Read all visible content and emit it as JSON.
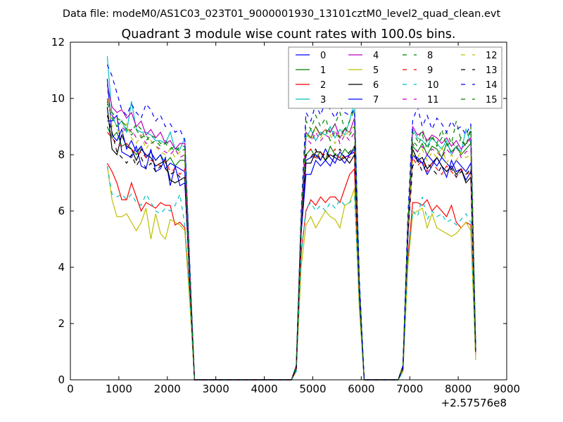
{
  "chart_data": {
    "type": "line",
    "suptitle": "Data file: modeM0/AS1C03_023T01_9000001930_13101cztM0_level2_quad_clean.evt",
    "title": "Quadrant 3 module wise count rates with 100.0s bins.",
    "xlabel": "",
    "ylabel": "",
    "x_offset_label": "+2.57576e8",
    "xlim": [
      0,
      9000
    ],
    "ylim": [
      0,
      12
    ],
    "xticks": [
      "0",
      "1000",
      "2000",
      "3000",
      "4000",
      "5000",
      "6000",
      "7000",
      "8000",
      "9000"
    ],
    "yticks": [
      "0",
      "2",
      "4",
      "6",
      "8",
      "10",
      "12"
    ],
    "legend_placement": "top-right",
    "x": [
      760,
      860,
      960,
      1060,
      1160,
      1260,
      1360,
      1460,
      1560,
      1660,
      1760,
      1860,
      1960,
      2060,
      2160,
      2260,
      2360,
      2460,
      2560,
      4560,
      4660,
      4760,
      4860,
      4960,
      5060,
      5160,
      5260,
      5360,
      5460,
      5560,
      5660,
      5760,
      5860,
      5960,
      6060,
      6760,
      6860,
      6960,
      7060,
      7160,
      7260,
      7360,
      7460,
      7560,
      7660,
      7760,
      7860,
      7960,
      8060,
      8160,
      8260,
      8360
    ],
    "series": [
      {
        "name": "0",
        "color": "#0000ff",
        "dash": "solid",
        "values": [
          9.2,
          9.2,
          9.4,
          8.1,
          8.0,
          7.9,
          8.3,
          7.6,
          7.5,
          8.2,
          7.4,
          7.5,
          7.9,
          6.9,
          7.6,
          6.9,
          7.0,
          3.8,
          0,
          0,
          0.4,
          5.2,
          7.3,
          7.3,
          7.8,
          7.6,
          7.8,
          7.6,
          8.0,
          7.9,
          7.7,
          8.0,
          8.1,
          3.0,
          0,
          0,
          0.4,
          5.0,
          8.0,
          7.8,
          7.7,
          7.3,
          7.6,
          7.9,
          7.6,
          7.2,
          7.8,
          7.4,
          7.5,
          7.1,
          7.4,
          1.0
        ]
      },
      {
        "name": "1",
        "color": "#008000",
        "dash": "solid",
        "values": [
          9.0,
          8.6,
          8.8,
          8.3,
          8.4,
          8.2,
          8.0,
          8.3,
          7.9,
          8.1,
          7.8,
          8.0,
          7.7,
          7.9,
          7.6,
          7.8,
          7.8,
          3.6,
          0,
          0,
          0.5,
          5.4,
          8.0,
          8.2,
          7.9,
          8.1,
          7.8,
          8.3,
          8.0,
          7.9,
          8.2,
          8.0,
          8.3,
          3.2,
          0,
          0,
          0.5,
          5.2,
          8.3,
          8.1,
          8.4,
          8.0,
          8.3,
          8.2,
          7.9,
          8.4,
          8.1,
          8.3,
          8.0,
          8.2,
          8.4,
          1.1
        ]
      },
      {
        "name": "2",
        "color": "#ff0000",
        "dash": "solid",
        "values": [
          7.7,
          7.4,
          7.0,
          6.4,
          6.4,
          7.0,
          6.5,
          6.0,
          6.3,
          6.2,
          6.1,
          6.3,
          6.2,
          6.2,
          5.5,
          5.6,
          5.4,
          3.0,
          0,
          0,
          0.3,
          4.5,
          6.0,
          6.4,
          6.2,
          6.5,
          6.3,
          6.5,
          6.5,
          6.3,
          6.8,
          7.3,
          7.5,
          2.8,
          0,
          0,
          0.3,
          4.3,
          6.3,
          6.3,
          6.2,
          6.4,
          6.0,
          6.2,
          6.0,
          5.8,
          6.2,
          5.6,
          5.4,
          5.6,
          5.5,
          0.9
        ]
      },
      {
        "name": "3",
        "color": "#00bfbf",
        "dash": "solid",
        "values": [
          11.5,
          9.4,
          9.0,
          9.2,
          8.8,
          9.9,
          8.9,
          8.8,
          8.8,
          8.7,
          8.5,
          8.5,
          8.4,
          8.8,
          8.2,
          8.2,
          8.6,
          4.2,
          0,
          0,
          0.5,
          5.8,
          8.6,
          8.9,
          8.5,
          8.8,
          8.7,
          9.0,
          8.6,
          8.9,
          8.7,
          9.2,
          9.9,
          3.5,
          0,
          0,
          0.5,
          5.5,
          8.9,
          8.6,
          8.5,
          8.3,
          8.6,
          8.4,
          8.2,
          8.5,
          8.0,
          8.3,
          8.1,
          8.9,
          8.4,
          1.1
        ]
      },
      {
        "name": "4",
        "color": "#bf00bf",
        "dash": "solid",
        "values": [
          10.5,
          9.7,
          9.5,
          9.6,
          9.3,
          9.5,
          9.0,
          9.2,
          8.7,
          8.9,
          8.6,
          8.8,
          8.4,
          8.5,
          8.2,
          8.4,
          8.4,
          4.0,
          0,
          0,
          0.5,
          5.7,
          8.8,
          8.6,
          9.0,
          8.7,
          8.9,
          8.8,
          9.1,
          8.6,
          8.9,
          8.8,
          9.3,
          3.4,
          0,
          0,
          0.5,
          5.4,
          9.0,
          8.7,
          8.8,
          8.5,
          8.7,
          8.6,
          8.4,
          8.6,
          8.3,
          8.5,
          8.2,
          8.4,
          8.6,
          1.1
        ]
      },
      {
        "name": "5",
        "color": "#bfbf00",
        "dash": "solid",
        "values": [
          7.6,
          6.4,
          5.8,
          5.8,
          5.9,
          5.6,
          5.3,
          5.6,
          6.1,
          5.0,
          5.9,
          5.2,
          5.0,
          5.7,
          5.6,
          5.5,
          5.3,
          2.8,
          0,
          0,
          0.3,
          4.0,
          5.5,
          5.8,
          5.4,
          5.7,
          6.0,
          5.8,
          5.7,
          5.4,
          6.2,
          6.3,
          6.8,
          2.5,
          0,
          0,
          0.3,
          4.0,
          5.9,
          6.0,
          6.1,
          5.4,
          5.9,
          5.4,
          5.3,
          5.2,
          5.1,
          5.2,
          5.4,
          5.6,
          5.3,
          0.7
        ]
      },
      {
        "name": "6",
        "color": "#000000",
        "dash": "solid",
        "values": [
          9.7,
          8.2,
          8.0,
          8.7,
          8.3,
          8.2,
          7.8,
          8.2,
          8.0,
          7.9,
          7.6,
          7.7,
          7.8,
          7.1,
          7.0,
          7.1,
          7.2,
          3.5,
          0,
          0,
          0.4,
          5.3,
          7.7,
          7.7,
          8.1,
          8.1,
          7.8,
          8.0,
          7.9,
          7.8,
          7.9,
          7.7,
          8.0,
          3.0,
          0,
          0,
          0.4,
          5.1,
          8.2,
          7.8,
          7.9,
          7.5,
          7.7,
          7.9,
          7.6,
          7.4,
          7.6,
          7.3,
          7.5,
          7.0,
          7.2,
          1.0
        ]
      },
      {
        "name": "7",
        "color": "#0000ff",
        "dash": "solid",
        "values": [
          10.7,
          8.7,
          8.5,
          8.9,
          8.2,
          8.5,
          8.1,
          8.3,
          7.9,
          8.1,
          7.8,
          8.0,
          7.5,
          7.7,
          7.6,
          7.5,
          7.4,
          3.7,
          0,
          0,
          0.4,
          5.3,
          7.8,
          7.9,
          8.0,
          7.8,
          8.2,
          7.9,
          7.7,
          8.1,
          7.9,
          8.0,
          8.2,
          3.1,
          0,
          0,
          0.4,
          5.1,
          8.0,
          7.9,
          7.7,
          8.0,
          7.8,
          7.6,
          7.9,
          7.7,
          7.5,
          7.8,
          7.6,
          7.4,
          7.7,
          1.0
        ]
      },
      {
        "name": "8",
        "color": "#008000",
        "dash": "dash",
        "values": [
          9.8,
          9.5,
          9.3,
          9.2,
          9.0,
          8.8,
          9.1,
          8.9,
          8.5,
          8.7,
          8.6,
          8.4,
          8.5,
          8.3,
          8.1,
          8.3,
          8.3,
          4.0,
          0,
          0,
          0.5,
          5.8,
          9.2,
          8.9,
          9.4,
          9.0,
          9.3,
          8.8,
          9.1,
          9.5,
          8.9,
          9.2,
          9.6,
          3.4,
          0,
          0,
          0.5,
          5.6,
          8.8,
          8.5,
          8.9,
          8.4,
          8.7,
          8.3,
          8.6,
          8.8,
          8.4,
          9.2,
          8.5,
          8.3,
          9.0,
          1.1
        ]
      },
      {
        "name": "9",
        "color": "#ff0000",
        "dash": "dash",
        "values": [
          8.8,
          8.6,
          8.4,
          8.3,
          8.4,
          8.2,
          8.0,
          8.1,
          7.9,
          7.8,
          7.7,
          7.6,
          7.8,
          7.4,
          7.5,
          7.3,
          7.5,
          3.6,
          0,
          0,
          0.4,
          5.4,
          8.0,
          8.2,
          7.8,
          8.1,
          7.9,
          8.0,
          8.2,
          7.8,
          8.0,
          7.9,
          8.1,
          3.1,
          0,
          0,
          0.4,
          5.2,
          7.9,
          7.6,
          7.8,
          7.4,
          7.7,
          7.5,
          7.3,
          7.6,
          7.4,
          7.2,
          7.5,
          7.3,
          7.4,
          1.0
        ]
      },
      {
        "name": "10",
        "color": "#00bfbf",
        "dash": "dash",
        "values": [
          7.6,
          6.6,
          6.5,
          6.6,
          6.4,
          6.6,
          6.3,
          6.2,
          6.6,
          6.3,
          6.0,
          5.9,
          6.1,
          6.0,
          6.2,
          6.6,
          5.5,
          3.0,
          0,
          0,
          0.3,
          4.4,
          6.1,
          6.3,
          6.0,
          6.2,
          6.0,
          6.3,
          6.1,
          6.4,
          6.2,
          6.3,
          6.5,
          2.7,
          0,
          0,
          0.3,
          4.2,
          6.0,
          5.8,
          6.5,
          5.7,
          6.0,
          5.8,
          5.9,
          5.6,
          5.7,
          5.5,
          5.7,
          5.9,
          5.6,
          0.9
        ]
      },
      {
        "name": "11",
        "color": "#bf00bf",
        "dash": "dash",
        "values": [
          10.0,
          9.4,
          9.2,
          9.0,
          8.8,
          8.9,
          8.6,
          8.7,
          8.4,
          8.5,
          8.3,
          8.2,
          8.1,
          8.0,
          8.2,
          7.9,
          8.0,
          3.9,
          0,
          0,
          0.5,
          5.6,
          8.6,
          8.4,
          8.8,
          8.5,
          8.7,
          8.6,
          8.9,
          8.4,
          8.7,
          8.5,
          8.8,
          3.3,
          0,
          0,
          0.5,
          5.3,
          8.4,
          8.1,
          8.3,
          8.0,
          8.2,
          8.1,
          7.9,
          8.2,
          8.0,
          8.3,
          7.9,
          8.1,
          8.2,
          1.1
        ]
      },
      {
        "name": "12",
        "color": "#bfbf00",
        "dash": "dash",
        "values": [
          10.3,
          9.0,
          8.9,
          8.7,
          9.1,
          8.6,
          8.4,
          8.7,
          8.2,
          8.5,
          8.3,
          8.1,
          8.0,
          8.2,
          7.9,
          8.1,
          8.0,
          3.9,
          0,
          0,
          0.5,
          5.6,
          8.8,
          8.5,
          9.0,
          8.6,
          8.9,
          8.7,
          8.4,
          8.8,
          8.6,
          8.9,
          9.0,
          3.3,
          0,
          0,
          0.5,
          5.3,
          8.0,
          7.9,
          8.2,
          7.8,
          8.1,
          7.9,
          8.3,
          7.7,
          8.0,
          7.8,
          8.1,
          7.9,
          8.0,
          1.0
        ]
      },
      {
        "name": "13",
        "color": "#000000",
        "dash": "dash",
        "values": [
          9.4,
          8.8,
          8.1,
          7.9,
          7.7,
          8.0,
          7.6,
          7.9,
          7.5,
          7.7,
          7.4,
          7.6,
          7.5,
          7.3,
          7.4,
          7.2,
          7.2,
          3.5,
          0,
          0,
          0.4,
          5.3,
          8.0,
          7.9,
          8.2,
          7.8,
          8.1,
          7.9,
          8.0,
          8.2,
          7.9,
          8.1,
          8.3,
          3.1,
          0,
          0,
          0.4,
          5.1,
          7.6,
          7.8,
          7.4,
          7.7,
          7.5,
          7.3,
          7.6,
          7.4,
          7.5,
          7.2,
          7.4,
          7.3,
          7.5,
          1.0
        ]
      },
      {
        "name": "14",
        "color": "#0000ff",
        "dash": "dash",
        "values": [
          11.2,
          10.8,
          10.2,
          9.6,
          9.4,
          9.8,
          9.5,
          9.3,
          9.8,
          9.6,
          9.2,
          9.4,
          9.0,
          9.1,
          8.8,
          8.9,
          8.5,
          4.2,
          0,
          0,
          0.5,
          6.0,
          9.5,
          9.2,
          9.8,
          9.4,
          9.9,
          9.6,
          9.3,
          9.7,
          9.5,
          9.4,
          9.6,
          3.6,
          0,
          0,
          0.5,
          5.8,
          9.2,
          9.7,
          9.0,
          9.4,
          8.9,
          9.3,
          9.1,
          8.8,
          9.2,
          8.9,
          9.0,
          8.7,
          9.1,
          1.2
        ]
      },
      {
        "name": "15",
        "color": "#008000",
        "dash": "dash",
        "values": [
          9.9,
          9.3,
          9.0,
          9.2,
          8.9,
          8.7,
          8.9,
          8.6,
          8.7,
          8.4,
          8.5,
          8.3,
          8.4,
          8.2,
          8.3,
          8.1,
          8.2,
          3.9,
          0,
          0,
          0.5,
          5.7,
          8.8,
          8.6,
          9.0,
          8.7,
          8.9,
          8.5,
          8.8,
          8.6,
          9.0,
          8.7,
          9.0,
          3.3,
          0,
          0,
          0.5,
          5.5,
          8.5,
          8.3,
          8.7,
          8.2,
          8.6,
          8.4,
          8.9,
          8.3,
          8.5,
          8.2,
          8.6,
          8.3,
          8.9,
          1.1
        ]
      }
    ]
  }
}
